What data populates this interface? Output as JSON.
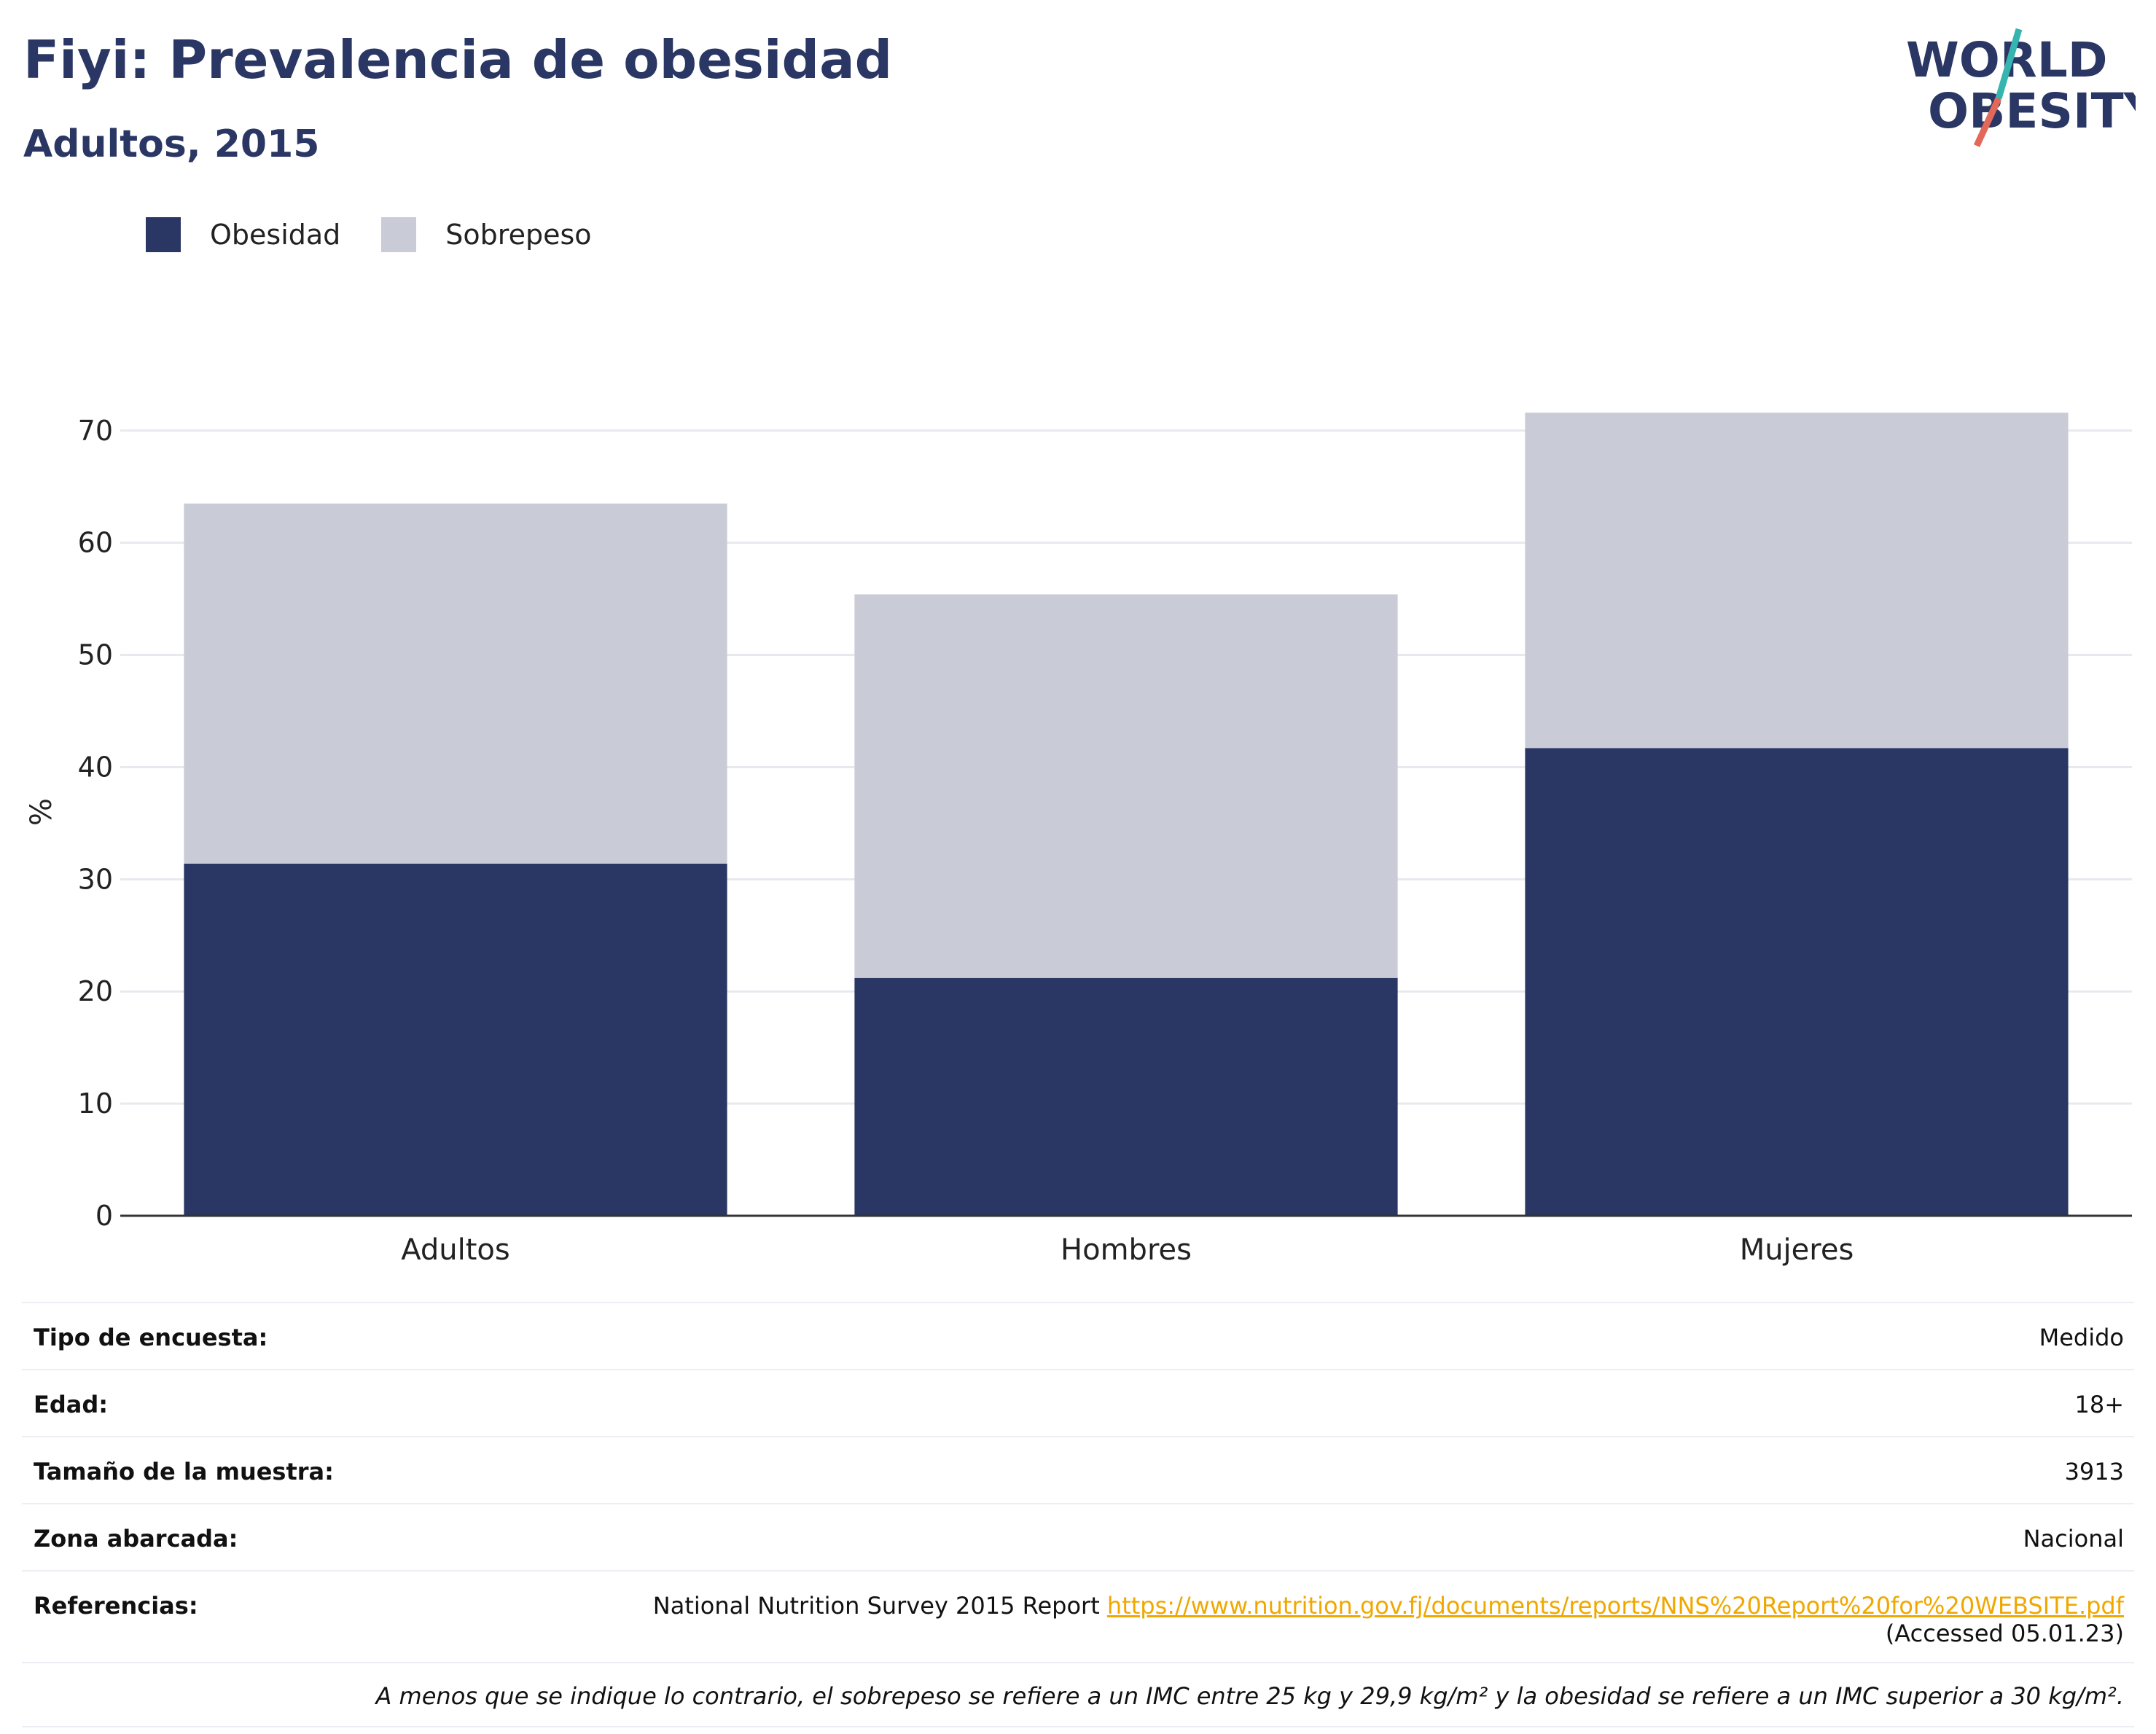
{
  "header": {
    "title": "Fiyi: Prevalencia de obesidad",
    "subtitle": "Adultos, 2015",
    "logo_line1": "WORLD",
    "logo_line2": "OBESITY"
  },
  "legend": {
    "items": [
      {
        "label": "Obesidad",
        "color": "#2a3663"
      },
      {
        "label": "Sobrepeso",
        "color": "#c9cbd6"
      }
    ]
  },
  "chart_data": {
    "type": "bar",
    "stacked": true,
    "categories": [
      "Adultos",
      "Hombres",
      "Mujeres"
    ],
    "series": [
      {
        "name": "Obesidad",
        "color": "#2a3663",
        "values": [
          31.4,
          21.2,
          41.7
        ]
      },
      {
        "name": "Sobrepeso",
        "color": "#c9cbd6",
        "values": [
          32.1,
          34.2,
          29.9
        ]
      }
    ],
    "ylabel": "%",
    "xlabel": "",
    "ylim": [
      0,
      72
    ],
    "yticks": [
      0,
      10,
      20,
      30,
      40,
      50,
      60,
      70
    ],
    "grid": true,
    "legend_position": "top-left"
  },
  "info": {
    "survey_type_label": "Tipo de encuesta:",
    "survey_type_value": "Medido",
    "age_label": "Edad:",
    "age_value": "18+",
    "sample_label": "Tamaño de la muestra:",
    "sample_value": "3913",
    "area_label": "Zona abarcada:",
    "area_value": "Nacional",
    "refs_label": "Referencias:",
    "refs_text": "National Nutrition Survey 2015 Report ",
    "refs_link": "https://www.nutrition.gov.fj/documents/reports/NNS%20Report%20for%20WEBSITE.pdf",
    "refs_accessed": "(Accessed 05.01.23)",
    "note": "A menos que se indique lo contrario, el sobrepeso se refiere a un IMC entre 25 kg y 29,9 kg/m² y la obesidad se refiere a un IMC superior a 30 kg/m²."
  }
}
